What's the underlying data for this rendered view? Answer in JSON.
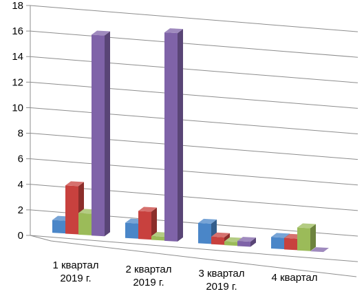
{
  "chart_data": {
    "type": "bar",
    "title": "",
    "xlabel": "",
    "ylabel": "",
    "ylim": [
      0,
      18
    ],
    "yticks": [
      0,
      2,
      4,
      6,
      8,
      10,
      12,
      14,
      16,
      18
    ],
    "grid": true,
    "style": "3d-clustered-column",
    "categories": [
      [
        "1 квартал",
        "2019 г."
      ],
      [
        "2 квартал",
        "2019 г."
      ],
      [
        "3 квартал",
        "2019 г."
      ],
      [
        "4 квартал"
      ]
    ],
    "series": [
      {
        "color": "#4a86c8",
        "values": [
          1.0,
          1.2,
          1.6,
          0.9
        ]
      },
      {
        "color": "#c8413e",
        "values": [
          3.8,
          2.2,
          0.6,
          0.9
        ]
      },
      {
        "color": "#9bbb59",
        "values": [
          1.7,
          0.3,
          0.3,
          1.8
        ]
      },
      {
        "color": "#7f63a8",
        "values": [
          15.8,
          16.4,
          0.4,
          0.0
        ]
      }
    ]
  }
}
